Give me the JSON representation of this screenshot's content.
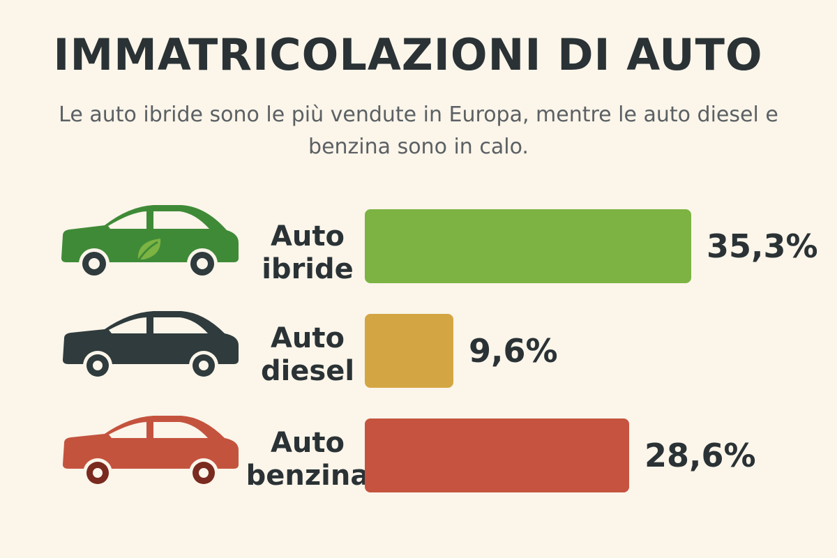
{
  "chart_data": {
    "type": "bar",
    "orientation": "horizontal",
    "title": "IMMATRICOLAZIONI DI AUTO",
    "subtitle": "Le auto ibride sono le più vendute in Europa, mentre le auto diesel e benzina sono in calo.",
    "unit": "%",
    "xlim": [
      0,
      35.3
    ],
    "categories": [
      {
        "line1": "Auto",
        "line2": "ibride",
        "value": 35.3,
        "value_label": "35,3%",
        "color": "#7cb342",
        "car_color": "#3f8a37",
        "icon": "eco-hybrid-car-icon"
      },
      {
        "line1": "Auto",
        "line2": "diesel",
        "value": 9.6,
        "value_label": "9,6%",
        "color": "#d4a643",
        "car_color": "#2f3b3c",
        "icon": "diesel-car-icon"
      },
      {
        "line1": "Auto",
        "line2": "benzina",
        "value": 28.6,
        "value_label": "28,6%",
        "color": "#c5533f",
        "car_color": "#c4533e",
        "icon": "petrol-car-icon"
      }
    ]
  }
}
